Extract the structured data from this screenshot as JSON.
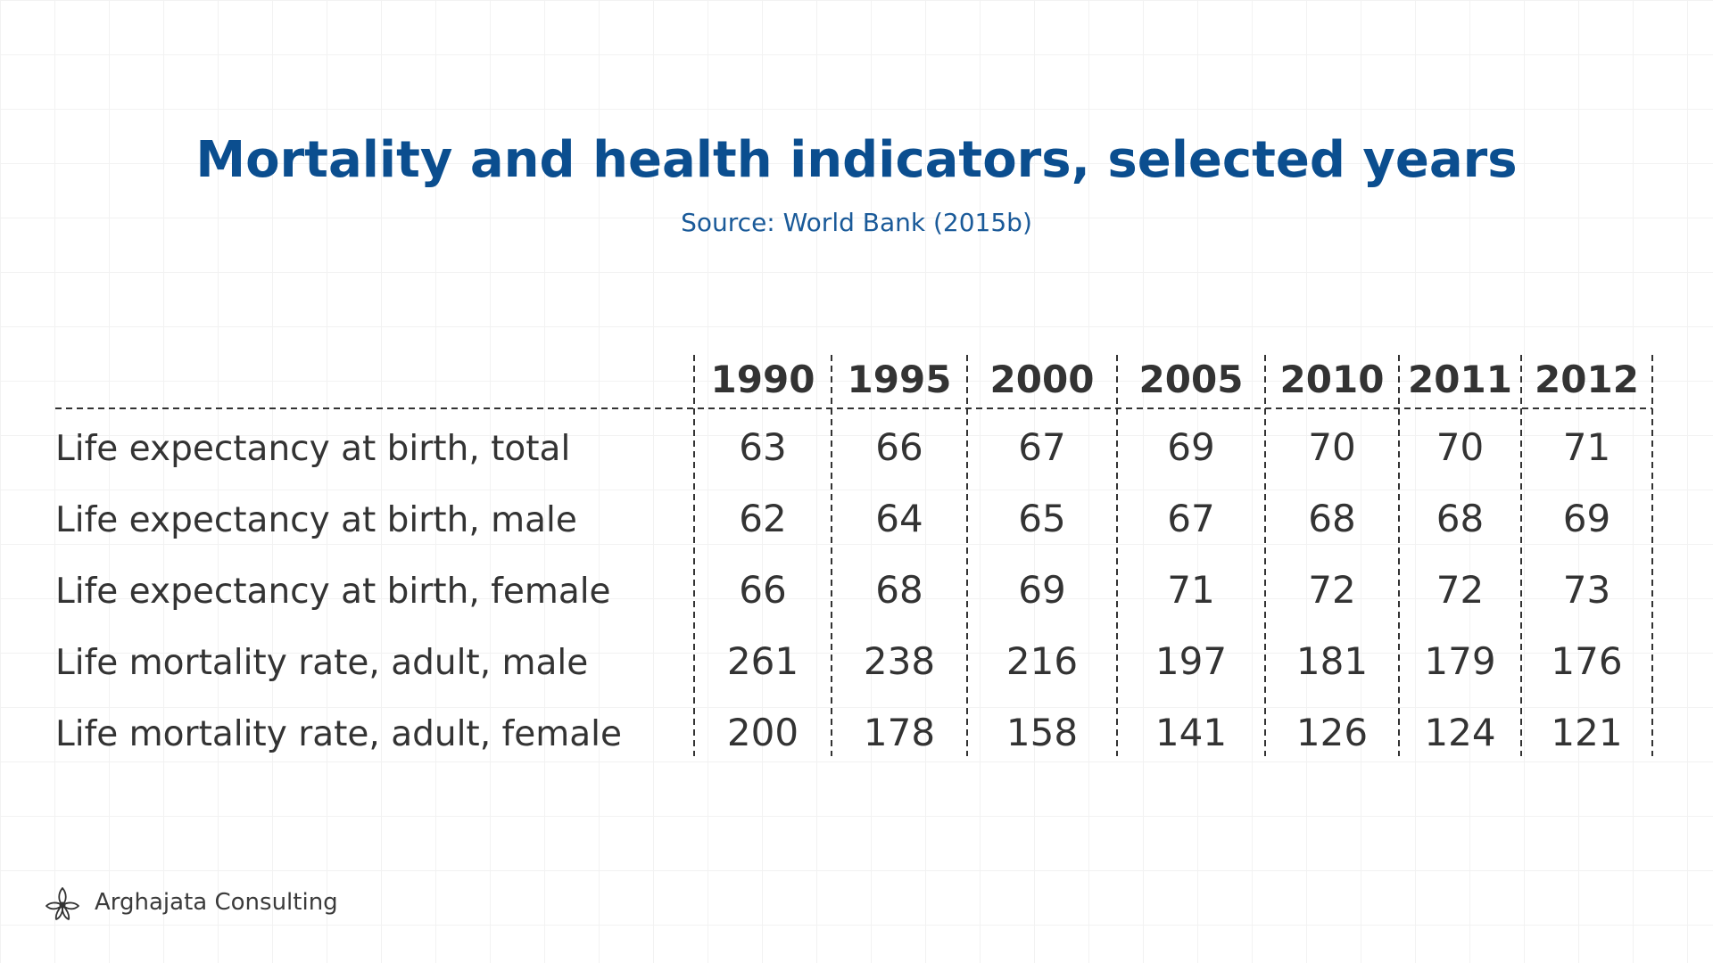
{
  "colors": {
    "title": "#0b4e8f",
    "subtitle": "#1a5a99",
    "text": "#333333",
    "grid": "#f2f2f2"
  },
  "footer": {
    "brand": "Arghajata Consulting",
    "logo_icon": "lotus-flower-icon"
  },
  "chart_data": {
    "type": "table",
    "title": "Mortality and health indicators, selected years",
    "subtitle": "Source: World Bank (2015b)",
    "columns": [
      "1990",
      "1995",
      "2000",
      "2005",
      "2010",
      "2011",
      "2012"
    ],
    "rows": [
      {
        "label": "Life expectancy at birth, total",
        "values": [
          63,
          66,
          67,
          69,
          70,
          70,
          71
        ]
      },
      {
        "label": "Life expectancy at birth, male",
        "values": [
          62,
          64,
          65,
          67,
          68,
          68,
          69
        ]
      },
      {
        "label": "Life expectancy at birth, female",
        "values": [
          66,
          68,
          69,
          71,
          72,
          72,
          73
        ]
      },
      {
        "label": "Life mortality rate, adult, male",
        "values": [
          261,
          238,
          216,
          197,
          181,
          179,
          176
        ]
      },
      {
        "label": "Life mortality rate, adult, female",
        "values": [
          200,
          178,
          158,
          141,
          126,
          124,
          121
        ]
      }
    ]
  }
}
